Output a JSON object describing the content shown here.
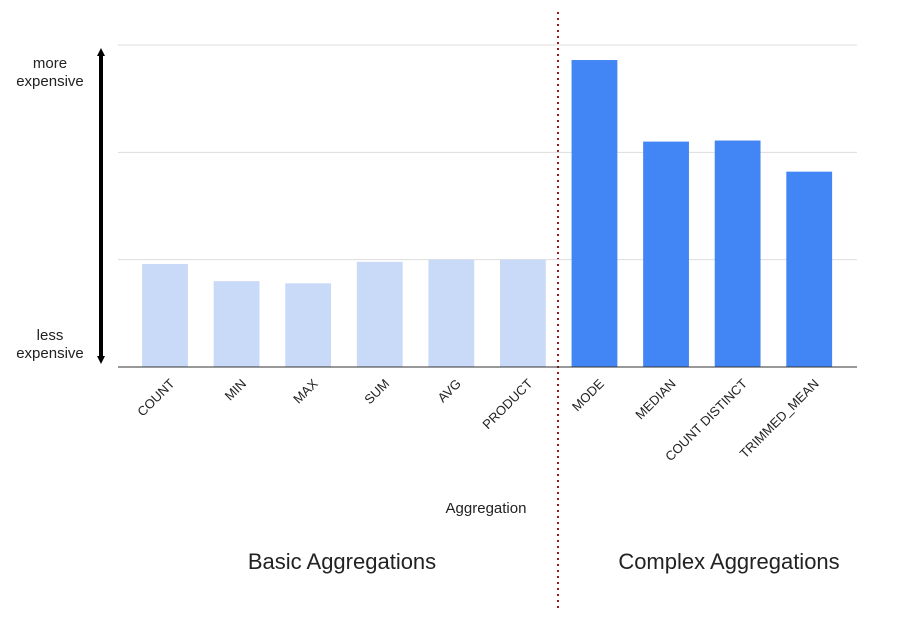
{
  "chart_data": {
    "type": "bar",
    "x_label": "Aggregation",
    "categories": [
      "COUNT",
      "MIN",
      "MAX",
      "SUM",
      "AVG",
      "PRODUCT",
      "MODE",
      "MEDIAN",
      "COUNT DISTINCT",
      "TRIMMED_MEAN"
    ],
    "values": [
      0.96,
      0.8,
      0.78,
      0.98,
      1.0,
      1.0,
      2.86,
      2.1,
      2.11,
      1.82
    ],
    "colors": [
      "#c9daf8",
      "#c9daf8",
      "#c9daf8",
      "#c9daf8",
      "#c9daf8",
      "#c9daf8",
      "#4285f4",
      "#4285f4",
      "#4285f4",
      "#4285f4"
    ],
    "ylim": [
      0,
      3
    ],
    "yticks": [
      0,
      1,
      2,
      3
    ],
    "grid": true,
    "y_top_label": [
      "more",
      "expensive"
    ],
    "y_bottom_label": [
      "less",
      "expensive"
    ],
    "groups": [
      {
        "name": "Basic Aggregations",
        "color": "#a31515"
      },
      {
        "name": "Complex Aggregations",
        "color": "#a31515"
      }
    ]
  }
}
